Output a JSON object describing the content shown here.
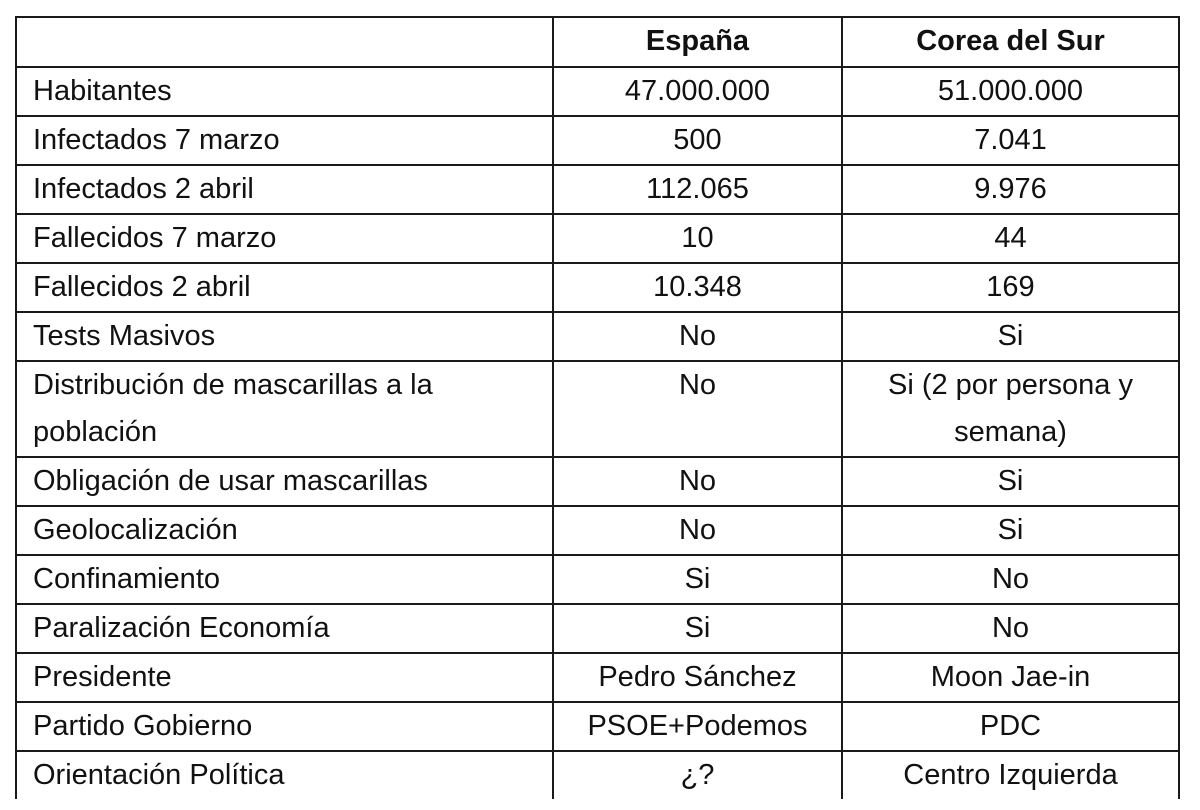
{
  "table": {
    "headers": [
      "",
      "España",
      "Corea del Sur"
    ],
    "rows": [
      [
        "Habitantes",
        "47.000.000",
        "51.000.000"
      ],
      [
        "Infectados 7 marzo",
        "500",
        "7.041"
      ],
      [
        "Infectados 2 abril",
        "112.065",
        "9.976"
      ],
      [
        "Fallecidos 7 marzo",
        "10",
        "44"
      ],
      [
        "Fallecidos 2 abril",
        "10.348",
        "169"
      ],
      [
        "Tests Masivos",
        "No",
        "Si"
      ],
      [
        "Distribución de mascarillas a la población",
        "No",
        "Si (2 por persona y semana)"
      ],
      [
        "Obligación de usar mascarillas",
        "No",
        "Si"
      ],
      [
        "Geolocalización",
        "No",
        "Si"
      ],
      [
        "Confinamiento",
        "Si",
        "No"
      ],
      [
        "Paralización Economía",
        "Si",
        "No"
      ],
      [
        "Presidente",
        "Pedro Sánchez",
        "Moon Jae-in"
      ],
      [
        "Partido Gobierno",
        "PSOE+Podemos",
        "PDC"
      ],
      [
        "Orientación Política",
        "¿?",
        "Centro Izquierda"
      ]
    ]
  }
}
